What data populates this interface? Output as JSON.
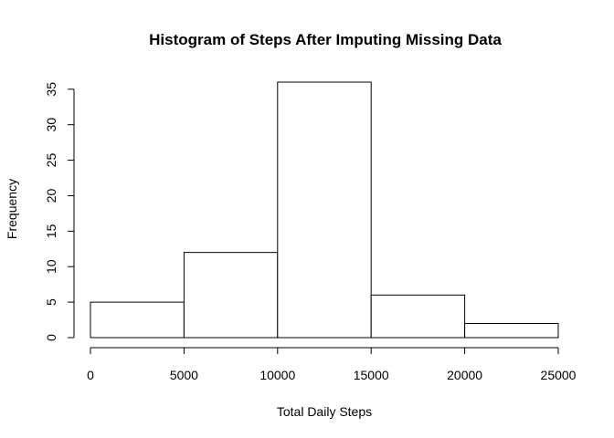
{
  "chart_data": {
    "type": "bar",
    "title": "Histogram of Steps After Imputing Missing Data",
    "xlabel": "Total Daily Steps",
    "ylabel": "Frequency",
    "bins": [
      {
        "start": 0,
        "end": 5000,
        "count": 5
      },
      {
        "start": 5000,
        "end": 10000,
        "count": 12
      },
      {
        "start": 10000,
        "end": 15000,
        "count": 36
      },
      {
        "start": 15000,
        "end": 20000,
        "count": 6
      },
      {
        "start": 20000,
        "end": 25000,
        "count": 2
      }
    ],
    "xlim": [
      0,
      25000
    ],
    "ylim": [
      0,
      36
    ],
    "xticks": [
      0,
      5000,
      10000,
      15000,
      20000,
      25000
    ],
    "yticks": [
      0,
      5,
      10,
      15,
      20,
      25,
      30,
      35
    ],
    "grid": false,
    "legend": "none",
    "bar_fill": "#ffffff",
    "bar_stroke": "#000000"
  }
}
